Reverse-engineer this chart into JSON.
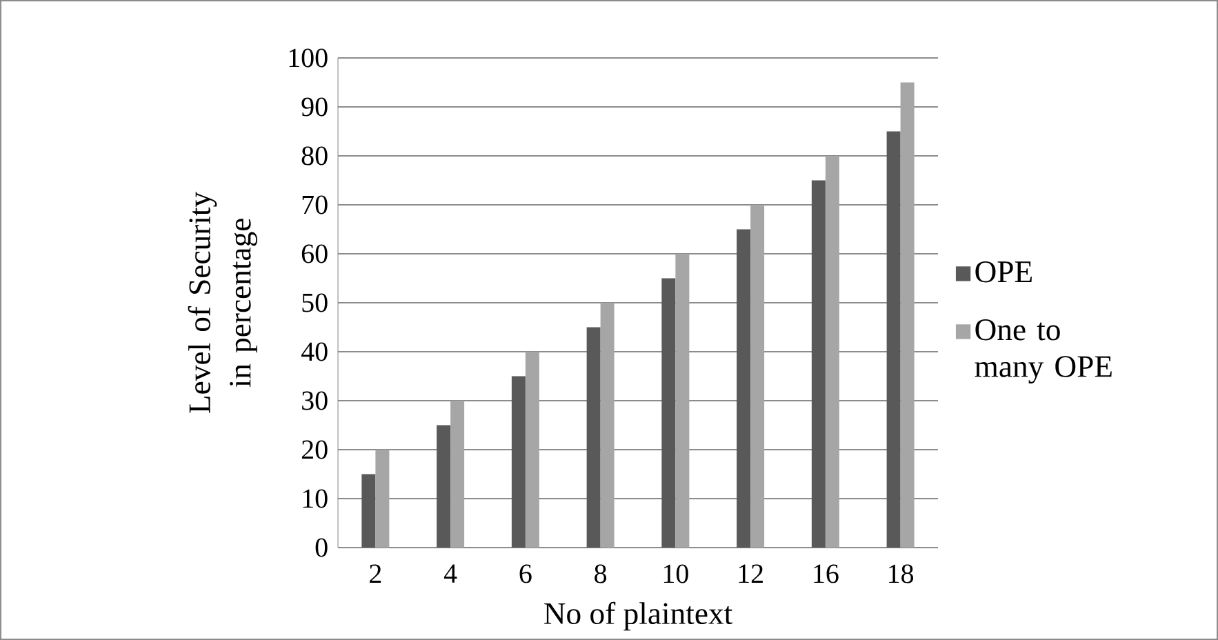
{
  "chart_data": {
    "type": "bar",
    "xlabel": "No of plaintext",
    "ylabel": "Level of Security  in percentage",
    "categories": [
      "2",
      "4",
      "6",
      "8",
      "10",
      "12",
      "16",
      "18"
    ],
    "series": [
      {
        "name": "OPE",
        "color": "#595959",
        "values": [
          15,
          25,
          35,
          45,
          55,
          65,
          75,
          85
        ]
      },
      {
        "name": "One to many OPE",
        "color": "#a6a6a6",
        "values": [
          20,
          30,
          40,
          50,
          60,
          70,
          80,
          95
        ]
      }
    ],
    "ylim": [
      0,
      100
    ],
    "yticks": [
      0,
      10,
      20,
      30,
      40,
      50,
      60,
      70,
      80,
      90,
      100
    ],
    "grid": "y",
    "legend": "right"
  }
}
